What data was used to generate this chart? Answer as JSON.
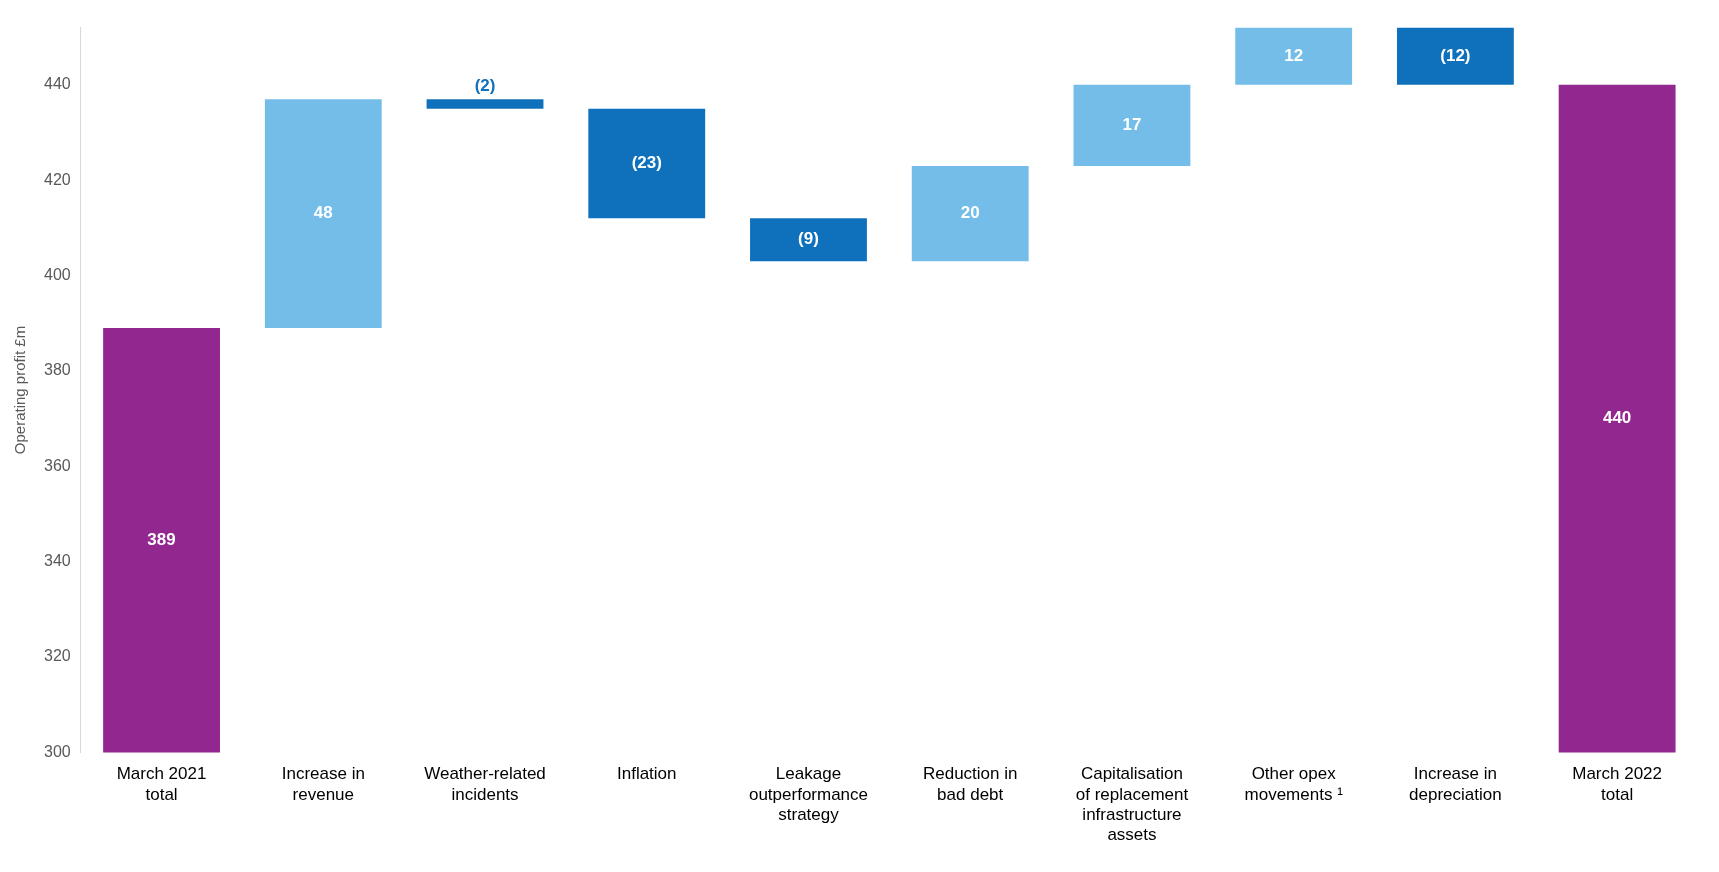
{
  "chart_data": {
    "type": "bar",
    "ylabel": "Operating profit £m",
    "categories": [
      "March 2021 total",
      "Increase in revenue",
      "Weather-related incidents",
      "Inflation",
      "Leakage outperformance strategy",
      "Reduction in bad debt",
      "Capitalisation of replacement infrastructure assets",
      "Other opex movements ¹",
      "Increase in depreciation",
      "March 2022 total"
    ],
    "values": [
      389,
      48,
      -2,
      -23,
      -9,
      20,
      17,
      12,
      -12,
      440
    ],
    "base": [
      0,
      389,
      437,
      435,
      412,
      403,
      423,
      440,
      452,
      0
    ],
    "colors": [
      "#92278f",
      "#74bde8",
      "#0f71bb",
      "#0f71bb",
      "#0f71bb",
      "#74bde8",
      "#74bde8",
      "#74bde8",
      "#0f71bb",
      "#92278f"
    ],
    "value_labels": [
      "389",
      "48",
      "(2)",
      "(23)",
      "(9)",
      "20",
      "17",
      "12",
      "(12)",
      "440"
    ],
    "ylim": [
      300,
      452
    ],
    "yticks": [
      300,
      320,
      340,
      360,
      380,
      400,
      420,
      440
    ],
    "grid": false,
    "legend": false
  }
}
